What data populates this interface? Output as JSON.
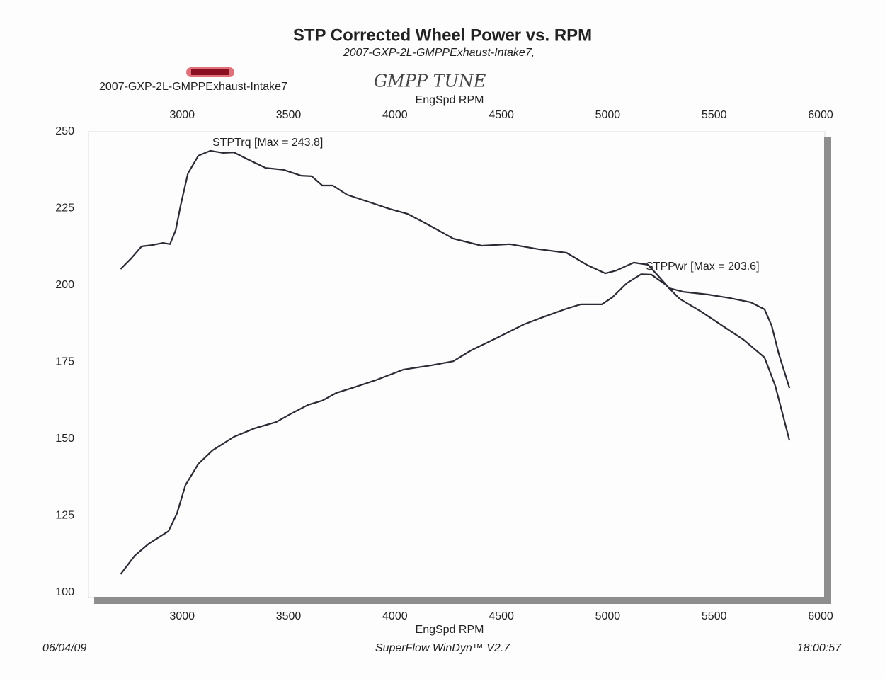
{
  "chart_data": {
    "type": "line",
    "title": "STP Corrected Wheel Power vs. RPM",
    "subtitle": "2007-GXP-2L-GMPPExhaust-Intake7,",
    "run_label": "2007-GXP-2L-GMPPExhaust-Intake7",
    "handwritten_note": "GMPP TUNE",
    "x_label": "EngSpd  RPM",
    "xlim": [
      2600,
      6000
    ],
    "xticks": [
      3000,
      3500,
      4000,
      4500,
      5000,
      5500,
      6000
    ],
    "ylim": [
      100,
      250
    ],
    "yticks": [
      100,
      125,
      150,
      175,
      200,
      225,
      250
    ],
    "annotations": [
      "STPTrq [Max = 243.8]",
      "STPPwr [Max = 203.6]"
    ],
    "footer": {
      "date": "06/04/09",
      "software": "SuperFlow WinDyn™ V2.7",
      "time": "18:00:57"
    },
    "series": [
      {
        "name": "STPTrq",
        "color": "#2b2b36",
        "x": [
          2711,
          2761,
          2810,
          2860,
          2910,
          2943,
          2970,
          2993,
          3027,
          3076,
          3133,
          3193,
          3243,
          3309,
          3393,
          3476,
          3559,
          3609,
          3659,
          3708,
          3775,
          3875,
          3974,
          4058,
          4141,
          4274,
          4407,
          4540,
          4673,
          4806,
          4906,
          4989,
          5039,
          5122,
          5189,
          5238,
          5288,
          5355,
          5471,
          5571,
          5671,
          5737,
          5770,
          5804,
          5854
        ],
        "values": [
          205.3,
          208.8,
          212.7,
          213.1,
          213.8,
          213.4,
          218,
          226,
          236.4,
          242.2,
          243.8,
          243.1,
          243.3,
          241,
          238.2,
          237.6,
          235.7,
          235.5,
          232.5,
          232.5,
          229.5,
          227.2,
          224.9,
          223.3,
          220.3,
          215.2,
          212.9,
          213.4,
          211.8,
          210.6,
          206.5,
          203.9,
          204.8,
          207.4,
          206.7,
          203,
          199.1,
          197.9,
          197,
          195.9,
          194.5,
          192.2,
          186.9,
          177.6,
          166.6
        ]
      },
      {
        "name": "STPPwr",
        "color": "#2b2b36",
        "x": [
          2711,
          2777,
          2843,
          2936,
          2976,
          3016,
          3076,
          3143,
          3243,
          3342,
          3442,
          3509,
          3592,
          3659,
          3725,
          3808,
          3908,
          4041,
          4174,
          4274,
          4357,
          4473,
          4606,
          4706,
          4806,
          4873,
          4972,
          5022,
          5089,
          5156,
          5205,
          5272,
          5338,
          5438,
          5538,
          5638,
          5737,
          5787,
          5854
        ],
        "values": [
          106,
          112,
          115.9,
          120,
          125.8,
          135,
          141.9,
          146.3,
          150.7,
          153.5,
          155.5,
          158.1,
          161.1,
          162.5,
          165,
          166.8,
          169.1,
          172.6,
          174,
          175.3,
          178.8,
          182.7,
          187.3,
          189.9,
          192.4,
          193.8,
          193.8,
          196.1,
          200.7,
          203.6,
          203.5,
          200.2,
          195.6,
          191.5,
          186.9,
          182.3,
          176.5,
          167.3,
          149.5
        ]
      }
    ]
  }
}
